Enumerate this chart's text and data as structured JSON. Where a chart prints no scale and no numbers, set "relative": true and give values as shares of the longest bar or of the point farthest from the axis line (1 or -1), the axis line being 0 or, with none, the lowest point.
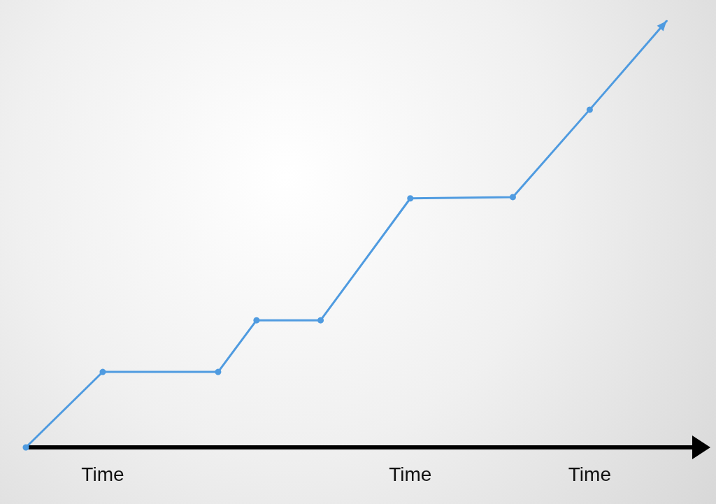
{
  "chart_data": {
    "type": "line",
    "relative": true,
    "categories": [
      null,
      null,
      null,
      null,
      null,
      null,
      "Time",
      null,
      null,
      null,
      null,
      null,
      null,
      null,
      null,
      null,
      null,
      null,
      null,
      null,
      null,
      null,
      null,
      null,
      null,
      null,
      null,
      null,
      null,
      null,
      "Time",
      null,
      null,
      null,
      null,
      null,
      null,
      null,
      null,
      null,
      null,
      null,
      null,
      null,
      "Time",
      null,
      null,
      null,
      null,
      null,
      null,
      null,
      null
    ],
    "series": [
      {
        "color": "#4f9be0",
        "values": [
          0,
          null,
          null,
          null,
          null,
          null,
          0.177,
          null,
          null,
          null,
          null,
          null,
          null,
          null,
          null,
          0.177,
          null,
          null,
          0.298,
          null,
          null,
          null,
          null,
          0.298,
          null,
          null,
          null,
          null,
          null,
          null,
          0.584,
          null,
          null,
          null,
          null,
          null,
          null,
          null,
          0.587,
          null,
          null,
          null,
          null,
          null,
          0.792,
          null,
          null,
          null,
          null,
          null,
          1,
          null,
          null
        ]
      }
    ],
    "tick_labels": "x",
    "grid": false,
    "marker": "circle",
    "line_style": "solid"
  }
}
